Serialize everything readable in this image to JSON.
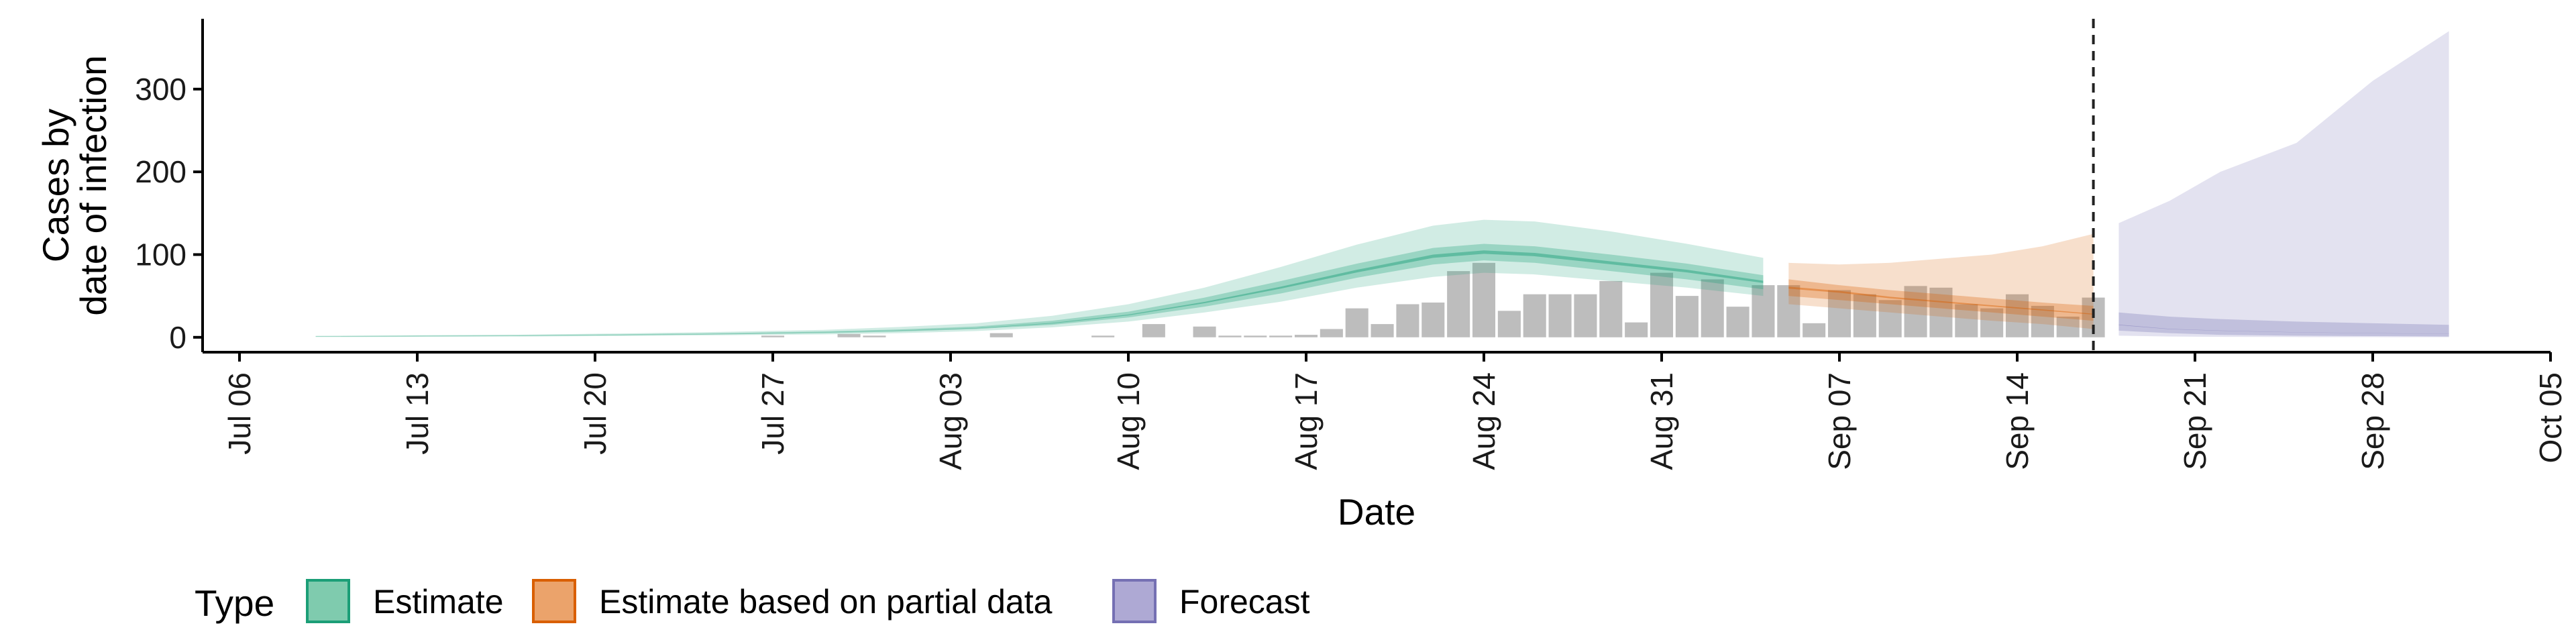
{
  "chart_data": {
    "type": "area",
    "xlabel": "Date",
    "ylabel_lines": [
      "Cases by",
      "date of infection"
    ],
    "xlim": [
      "2020-07-06",
      "2020-10-05"
    ],
    "ylim": [
      -18,
      385
    ],
    "y_ticks": [
      0,
      100,
      200,
      300
    ],
    "x_ticks": [
      {
        "date": "2020-07-06",
        "label": "Jul 06"
      },
      {
        "date": "2020-07-13",
        "label": "Jul 13"
      },
      {
        "date": "2020-07-20",
        "label": "Jul 20"
      },
      {
        "date": "2020-07-27",
        "label": "Jul 27"
      },
      {
        "date": "2020-08-03",
        "label": "Aug 03"
      },
      {
        "date": "2020-08-10",
        "label": "Aug 10"
      },
      {
        "date": "2020-08-17",
        "label": "Aug 17"
      },
      {
        "date": "2020-08-24",
        "label": "Aug 24"
      },
      {
        "date": "2020-08-31",
        "label": "Aug 31"
      },
      {
        "date": "2020-09-07",
        "label": "Sep 07"
      },
      {
        "date": "2020-09-14",
        "label": "Sep 14"
      },
      {
        "date": "2020-09-21",
        "label": "Sep 21"
      },
      {
        "date": "2020-09-28",
        "label": "Sep 28"
      },
      {
        "date": "2020-10-05",
        "label": "Oct 05"
      }
    ],
    "vline_date": "2020-09-17",
    "grid": false,
    "legend": {
      "title": "Type",
      "position": "bottom",
      "entries": [
        {
          "label": "Estimate",
          "fill": "#7fcbae",
          "stroke": "#1b9e77"
        },
        {
          "label": "Estimate based on partial data",
          "fill": "#eba36b",
          "stroke": "#d95f02"
        },
        {
          "label": "Forecast",
          "fill": "#aea9d4",
          "stroke": "#7570b3"
        }
      ]
    },
    "bars": {
      "color": "#bdbdbd",
      "data": [
        [
          "2020-07-27",
          2
        ],
        [
          "2020-07-30",
          4
        ],
        [
          "2020-07-31",
          2
        ],
        [
          "2020-08-05",
          5
        ],
        [
          "2020-08-09",
          2
        ],
        [
          "2020-08-11",
          16
        ],
        [
          "2020-08-13",
          13
        ],
        [
          "2020-08-14",
          2
        ],
        [
          "2020-08-15",
          2
        ],
        [
          "2020-08-16",
          2
        ],
        [
          "2020-08-17",
          3
        ],
        [
          "2020-08-18",
          10
        ],
        [
          "2020-08-19",
          35
        ],
        [
          "2020-08-20",
          16
        ],
        [
          "2020-08-21",
          40
        ],
        [
          "2020-08-22",
          42
        ],
        [
          "2020-08-23",
          80
        ],
        [
          "2020-08-24",
          90
        ],
        [
          "2020-08-25",
          32
        ],
        [
          "2020-08-26",
          52
        ],
        [
          "2020-08-27",
          52
        ],
        [
          "2020-08-28",
          52
        ],
        [
          "2020-08-29",
          68
        ],
        [
          "2020-08-30",
          18
        ],
        [
          "2020-08-31",
          78
        ],
        [
          "2020-09-01",
          50
        ],
        [
          "2020-09-02",
          70
        ],
        [
          "2020-09-03",
          37
        ],
        [
          "2020-09-04",
          63
        ],
        [
          "2020-09-05",
          63
        ],
        [
          "2020-09-06",
          17
        ],
        [
          "2020-09-07",
          57
        ],
        [
          "2020-09-08",
          52
        ],
        [
          "2020-09-09",
          45
        ],
        [
          "2020-09-10",
          62
        ],
        [
          "2020-09-11",
          60
        ],
        [
          "2020-09-12",
          40
        ],
        [
          "2020-09-13",
          35
        ],
        [
          "2020-09-14",
          52
        ],
        [
          "2020-09-15",
          38
        ],
        [
          "2020-09-16",
          25
        ],
        [
          "2020-09-17",
          48
        ]
      ]
    },
    "series": [
      {
        "name": "Estimate",
        "type_label": "Estimate",
        "fill": "#1b9e77",
        "dates": [
          "2020-07-09",
          "2020-07-13",
          "2020-07-17",
          "2020-07-21",
          "2020-07-25",
          "2020-07-29",
          "2020-08-01",
          "2020-08-04",
          "2020-08-07",
          "2020-08-10",
          "2020-08-13",
          "2020-08-16",
          "2020-08-19",
          "2020-08-22",
          "2020-08-24",
          "2020-08-26",
          "2020-08-29",
          "2020-09-01",
          "2020-09-04"
        ],
        "median": [
          1,
          1.5,
          2,
          3,
          4,
          6,
          8,
          11,
          17,
          27,
          42,
          60,
          80,
          98,
          103,
          100,
          90,
          80,
          67
        ],
        "lower50": [
          0.7,
          1,
          1.5,
          2.4,
          3.5,
          5,
          7,
          10,
          15,
          24,
          37,
          53,
          72,
          88,
          93,
          90,
          80,
          70,
          58
        ],
        "upper50": [
          1.3,
          2,
          2.5,
          3.6,
          5,
          7,
          9.5,
          13,
          20,
          31,
          48,
          68,
          89,
          108,
          113,
          110,
          100,
          89,
          75
        ],
        "lower90": [
          0.3,
          0.5,
          1,
          1.6,
          2.5,
          3.5,
          5,
          7.5,
          12,
          19,
          30,
          43,
          60,
          73,
          78,
          76,
          68,
          60,
          50
        ],
        "upper90": [
          1.8,
          2.5,
          3.2,
          4.6,
          6.5,
          9,
          12.5,
          17,
          26,
          40,
          60,
          85,
          112,
          135,
          142,
          140,
          128,
          113,
          96
        ]
      },
      {
        "name": "Estimate based on partial data",
        "type_label": "Estimate based on partial data",
        "fill": "#d95f02",
        "dates": [
          "2020-09-05",
          "2020-09-07",
          "2020-09-09",
          "2020-09-11",
          "2020-09-13",
          "2020-09-15",
          "2020-09-17"
        ],
        "median": [
          60,
          55,
          48,
          43,
          38,
          33,
          28
        ],
        "lower50": [
          50,
          45,
          40,
          35,
          30,
          25,
          20
        ],
        "upper50": [
          70,
          63,
          57,
          52,
          47,
          42,
          38
        ],
        "lower90": [
          40,
          35,
          30,
          25,
          20,
          16,
          10
        ],
        "upper90": [
          90,
          88,
          90,
          95,
          100,
          110,
          125
        ]
      },
      {
        "name": "Forecast",
        "type_label": "Forecast",
        "fill": "#7570b3",
        "dates": [
          "2020-09-18",
          "2020-09-20",
          "2020-09-22",
          "2020-09-25",
          "2020-09-28",
          "2020-10-01"
        ],
        "median": [
          15,
          10,
          8,
          6,
          5,
          4
        ],
        "lower50": [
          8,
          5,
          3,
          2,
          1.5,
          1
        ],
        "upper50": [
          30,
          25,
          22,
          19,
          17,
          15
        ],
        "lower90": [
          2,
          1,
          0.5,
          0.3,
          0.2,
          0.1
        ],
        "upper90": [
          138,
          165,
          200,
          235,
          310,
          370
        ]
      }
    ]
  }
}
